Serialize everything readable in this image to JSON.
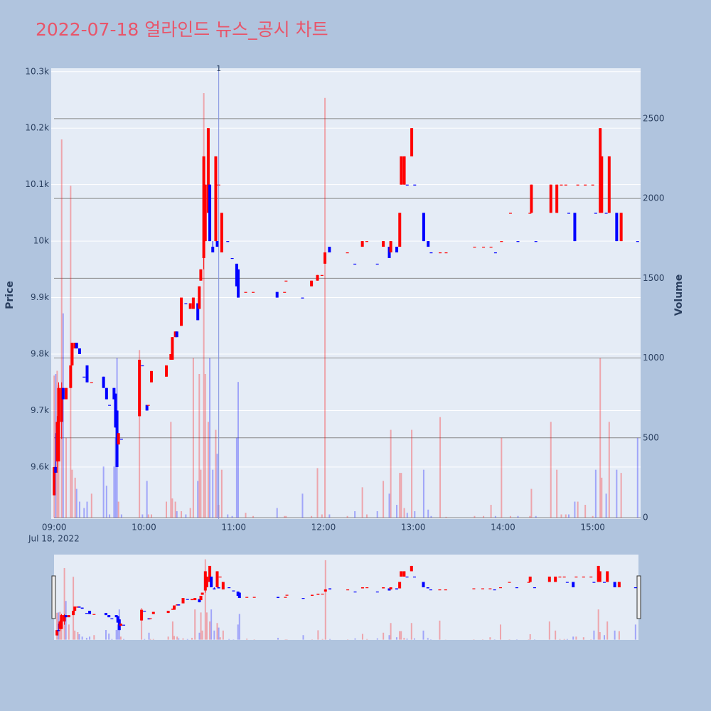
{
  "chart_data": {
    "type": "candlestick",
    "title": "2022-07-18 얼라인드 뉴스_공시 차트",
    "x_label_date": "Jul 18, 2022",
    "y_label": "Price",
    "y2_label": "Volume",
    "xlim": [
      "08:58",
      "15:32"
    ],
    "xticks": [
      "09:00",
      "10:00",
      "11:00",
      "12:00",
      "13:00",
      "14:00",
      "15:00"
    ],
    "ylim": [
      9508,
      10306
    ],
    "yticks": [
      {
        "value": 9600,
        "label": "9.6k"
      },
      {
        "value": 9700,
        "label": "9.7k"
      },
      {
        "value": 9800,
        "label": "9.8k"
      },
      {
        "value": 9900,
        "label": "9.9k"
      },
      {
        "value": 10000,
        "label": "10k"
      },
      {
        "value": 10100,
        "label": "10.1k"
      },
      {
        "value": 10200,
        "label": "10.2k"
      },
      {
        "value": 10300,
        "label": "10.3k"
      }
    ],
    "y2lim": [
      -9,
      2816
    ],
    "y2ticks": [
      0,
      500,
      1000,
      1500,
      2000,
      2500
    ],
    "increasing_color": "#ff0000",
    "decreasing_color": "#0000ff",
    "grid": true,
    "annotations": [
      {
        "x": "10:50",
        "text": "1"
      }
    ],
    "x": [
      "09:00",
      "09:01",
      "09:02",
      "09:03",
      "09:05",
      "09:06",
      "09:08",
      "09:11",
      "09:12",
      "09:14",
      "09:15",
      "09:17",
      "09:20",
      "09:22",
      "09:25",
      "09:33",
      "09:35",
      "09:37",
      "09:40",
      "09:41",
      "09:42",
      "09:43",
      "09:45",
      "09:57",
      "09:59",
      "10:02",
      "10:03",
      "10:05",
      "10:15",
      "10:18",
      "10:19",
      "10:21",
      "10:22",
      "10:25",
      "10:28",
      "10:31",
      "10:33",
      "10:36",
      "10:37",
      "10:38",
      "10:40",
      "10:41",
      "10:43",
      "10:44",
      "10:46",
      "10:48",
      "10:49",
      "10:50",
      "10:52",
      "10:56",
      "10:59",
      "11:02",
      "11:03",
      "11:08",
      "11:13",
      "11:29",
      "11:34",
      "11:35",
      "11:46",
      "11:52",
      "11:56",
      "11:59",
      "12:01",
      "12:04",
      "12:16",
      "12:21",
      "12:26",
      "12:29",
      "12:36",
      "12:40",
      "12:44",
      "12:45",
      "12:49",
      "12:51",
      "12:52",
      "12:54",
      "12:56",
      "12:59",
      "13:01",
      "13:07",
      "13:10",
      "13:12",
      "13:18",
      "13:22",
      "13:41",
      "13:47",
      "13:52",
      "13:55",
      "13:59",
      "14:05",
      "14:10",
      "14:18",
      "14:19",
      "14:22",
      "14:32",
      "14:36",
      "14:39",
      "14:42",
      "14:44",
      "14:48",
      "14:50",
      "14:55",
      "15:00",
      "15:02",
      "15:05",
      "15:06",
      "15:09",
      "15:11",
      "15:16",
      "15:19",
      "15:30"
    ],
    "open": [
      9550,
      9600,
      9610,
      9610,
      9680,
      9740,
      9720,
      9740,
      9780,
      9810,
      9820,
      9810,
      9760,
      9780,
      9750,
      9760,
      9740,
      9710,
      9740,
      9730,
      9700,
      9640,
      9650,
      9690,
      9780,
      9710,
      9710,
      9750,
      9760,
      9790,
      9790,
      9830,
      9840,
      9850,
      9890,
      9880,
      9880,
      9890,
      9880,
      9930,
      9970,
      10000,
      10050,
      10100,
      9990,
      10000,
      10000,
      10100,
      9980,
      10000,
      9970,
      9960,
      9950,
      9910,
      9910,
      9910,
      9910,
      9930,
      9900,
      9920,
      9930,
      9940,
      9960,
      9990,
      9980,
      9960,
      9990,
      10000,
      9960,
      9990,
      9990,
      9980,
      9990,
      9990,
      10100,
      10100,
      10100,
      10150,
      10100,
      10050,
      10000,
      9980,
      9980,
      9980,
      9990,
      9990,
      9990,
      9980,
      10000,
      10050,
      10000,
      10050,
      10050,
      10000,
      10050,
      10050,
      10100,
      10100,
      10050,
      10050,
      10100,
      10100,
      10100,
      10050,
      10050,
      10050,
      10050,
      10050,
      10050,
      10000,
      10000
    ],
    "high": [
      9600,
      9660,
      9690,
      9750,
      9750,
      9740,
      9740,
      9780,
      9820,
      9820,
      9820,
      9810,
      9760,
      9780,
      9750,
      9760,
      9740,
      9710,
      9740,
      9730,
      9700,
      9660,
      9650,
      9790,
      9780,
      9710,
      9710,
      9770,
      9780,
      9800,
      9830,
      9840,
      9840,
      9900,
      9890,
      9890,
      9900,
      9890,
      9920,
      9950,
      10150,
      10100,
      10200,
      10100,
      10000,
      10150,
      10000,
      10100,
      10050,
      10000,
      9970,
      9960,
      9950,
      9910,
      9910,
      9910,
      9910,
      9930,
      9900,
      9930,
      9940,
      9940,
      9980,
      9990,
      9980,
      9960,
      10000,
      10000,
      9960,
      10000,
      9990,
      10000,
      9990,
      10050,
      10150,
      10150,
      10100,
      10200,
      10100,
      10050,
      10000,
      9980,
      9980,
      9980,
      9990,
      9990,
      9990,
      9980,
      10000,
      10050,
      10000,
      10050,
      10100,
      10000,
      10100,
      10100,
      10100,
      10100,
      10050,
      10050,
      10100,
      10100,
      10100,
      10050,
      10200,
      10150,
      10050,
      10150,
      10050,
      10050,
      10000
    ],
    "low": [
      9550,
      9590,
      9590,
      9610,
      9650,
      9720,
      9720,
      9740,
      9780,
      9810,
      9810,
      9800,
      9760,
      9750,
      9750,
      9740,
      9720,
      9710,
      9720,
      9670,
      9600,
      9640,
      9650,
      9690,
      9780,
      9700,
      9710,
      9750,
      9760,
      9790,
      9790,
      9830,
      9830,
      9850,
      9890,
      9880,
      9880,
      9860,
      9880,
      9930,
      9950,
      10000,
      10050,
      10000,
      9980,
      10000,
      9990,
      10100,
      9980,
      10000,
      9970,
      9920,
      9900,
      9910,
      9910,
      9900,
      9910,
      9930,
      9900,
      9920,
      9930,
      9940,
      9960,
      9980,
      9980,
      9960,
      9990,
      10000,
      9960,
      9990,
      9970,
      9980,
      9980,
      9990,
      10100,
      10100,
      10100,
      10150,
      10100,
      10000,
      9990,
      9980,
      9980,
      9980,
      9990,
      9990,
      9990,
      9980,
      10000,
      10050,
      10000,
      10050,
      10050,
      10000,
      10050,
      10050,
      10100,
      10100,
      10050,
      10000,
      10100,
      10100,
      10100,
      10050,
      10050,
      10050,
      10050,
      10050,
      10000,
      10000,
      10000
    ],
    "close": [
      9600,
      9590,
      9680,
      9740,
      9740,
      9720,
      9740,
      9780,
      9820,
      9820,
      9810,
      9800,
      9760,
      9750,
      9750,
      9740,
      9720,
      9710,
      9720,
      9670,
      9600,
      9660,
      9650,
      9790,
      9780,
      9700,
      9710,
      9770,
      9780,
      9800,
      9830,
      9840,
      9830,
      9900,
      9890,
      9890,
      9900,
      9860,
      9920,
      9950,
      10150,
      10100,
      10200,
      10000,
      9980,
      10150,
      9990,
      10100,
      10050,
      10000,
      9970,
      9920,
      9900,
      9910,
      9910,
      9900,
      9910,
      9930,
      9900,
      9930,
      9940,
      9940,
      9980,
      9980,
      9980,
      9960,
      10000,
      10000,
      9960,
      10000,
      9970,
      10000,
      9980,
      10050,
      10150,
      10150,
      10100,
      10200,
      10100,
      10000,
      9990,
      9980,
      9980,
      9980,
      9990,
      9990,
      9990,
      9980,
      10000,
      10050,
      10000,
      10050,
      10100,
      10000,
      10100,
      10100,
      10100,
      10100,
      10050,
      10000,
      10100,
      10100,
      10100,
      10050,
      10200,
      10150,
      10050,
      10150,
      10000,
      10050,
      10000
    ],
    "volume": [
      890,
      900,
      920,
      830,
      2370,
      1280,
      500,
      2080,
      300,
      250,
      180,
      100,
      60,
      100,
      150,
      320,
      200,
      20,
      320,
      500,
      1000,
      100,
      20,
      1050,
      20,
      230,
      20,
      20,
      100,
      600,
      120,
      100,
      40,
      40,
      20,
      60,
      1000,
      230,
      900,
      300,
      2660,
      900,
      600,
      1000,
      300,
      550,
      400,
      80,
      300,
      20,
      10,
      500,
      850,
      30,
      10,
      60,
      10,
      10,
      150,
      10,
      310,
      20,
      2630,
      20,
      10,
      40,
      190,
      20,
      40,
      230,
      150,
      550,
      80,
      280,
      280,
      60,
      30,
      550,
      40,
      300,
      50,
      10,
      630,
      5,
      10,
      10,
      80,
      10,
      500,
      10,
      10,
      10,
      180,
      10,
      600,
      300,
      20,
      20,
      20,
      100,
      100,
      80,
      10,
      300,
      1000,
      250,
      150,
      600,
      300,
      280,
      500
    ]
  }
}
